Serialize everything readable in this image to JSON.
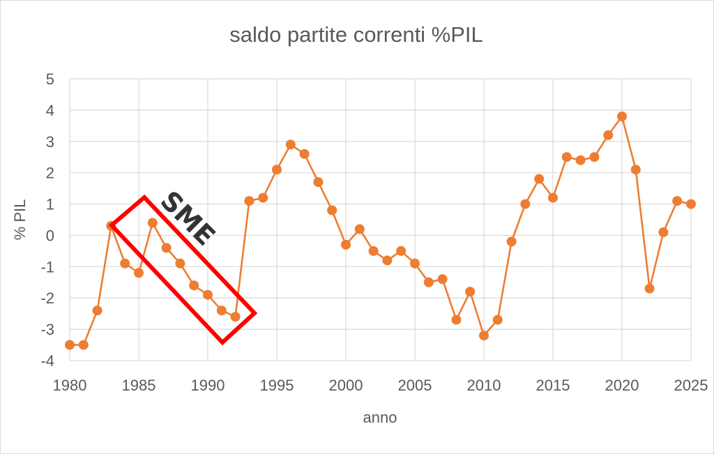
{
  "chart_data": {
    "type": "line",
    "title": "saldo partite correnti %PIL",
    "xlabel": "anno",
    "ylabel": "% PIL",
    "xlim": [
      1980,
      2025
    ],
    "ylim": [
      -4,
      5
    ],
    "xticks": [
      1980,
      1985,
      1990,
      1995,
      2000,
      2005,
      2010,
      2015,
      2020,
      2025
    ],
    "yticks": [
      -4,
      -3,
      -2,
      -1,
      0,
      1,
      2,
      3,
      4,
      5
    ],
    "grid": true,
    "legend": "none",
    "series": [
      {
        "color": "#ED7D31",
        "x": [
          1980,
          1981,
          1982,
          1983,
          1984,
          1985,
          1986,
          1987,
          1988,
          1989,
          1990,
          1991,
          1992,
          1993,
          1994,
          1995,
          1996,
          1997,
          1998,
          1999,
          2000,
          2001,
          2002,
          2003,
          2004,
          2005,
          2006,
          2007,
          2008,
          2009,
          2010,
          2011,
          2012,
          2013,
          2014,
          2015,
          2016,
          2017,
          2018,
          2019,
          2020,
          2021,
          2022,
          2023,
          2024,
          2025
        ],
        "values": [
          -3.5,
          -3.5,
          -2.4,
          0.3,
          -0.9,
          -1.2,
          0.4,
          -0.4,
          -0.9,
          -1.6,
          -1.9,
          -2.4,
          -2.6,
          1.1,
          1.2,
          2.1,
          2.9,
          2.6,
          1.7,
          0.8,
          -0.3,
          0.2,
          -0.5,
          -0.8,
          -0.5,
          -0.9,
          -1.5,
          -1.4,
          -2.7,
          -1.8,
          -3.2,
          -2.7,
          -0.2,
          1.0,
          1.8,
          1.2,
          2.5,
          2.4,
          2.5,
          3.2,
          3.8,
          2.1,
          -1.7,
          0.1,
          1.1,
          1.0
        ]
      }
    ],
    "annotations": [
      {
        "text": "SME",
        "color": "#FF0000",
        "x_range": [
          1983,
          1993
        ],
        "y_range": [
          -3.5,
          1.2
        ]
      }
    ]
  }
}
